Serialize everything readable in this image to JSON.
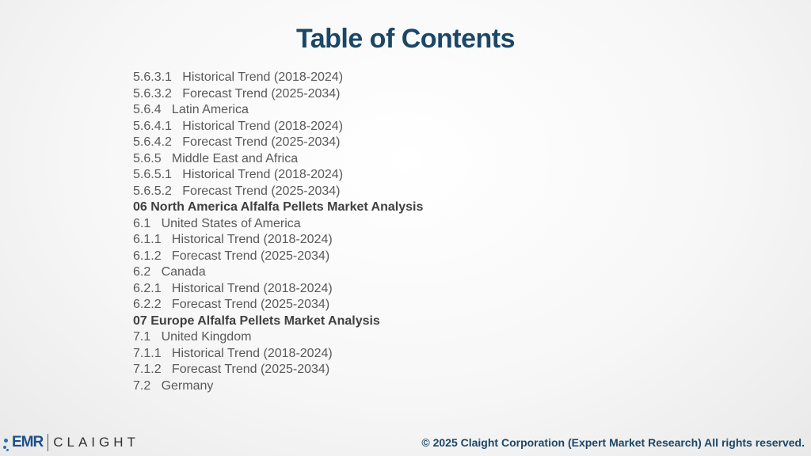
{
  "slide": {
    "title": "Table of Contents"
  },
  "toc": {
    "items": [
      {
        "text": "5.6.3.1   Historical Trend (2018-2024)",
        "heading": false
      },
      {
        "text": "5.6.3.2   Forecast Trend (2025-2034)",
        "heading": false
      },
      {
        "text": "5.6.4   Latin America",
        "heading": false
      },
      {
        "text": "5.6.4.1   Historical Trend (2018-2024)",
        "heading": false
      },
      {
        "text": "5.6.4.2   Forecast Trend (2025-2034)",
        "heading": false
      },
      {
        "text": "5.6.5   Middle East and Africa",
        "heading": false
      },
      {
        "text": "5.6.5.1   Historical Trend (2018-2024)",
        "heading": false
      },
      {
        "text": "5.6.5.2   Forecast Trend (2025-2034)",
        "heading": false
      },
      {
        "text": "06 North America Alfalfa Pellets Market Analysis",
        "heading": true
      },
      {
        "text": "6.1   United States of America",
        "heading": false
      },
      {
        "text": "6.1.1   Historical Trend (2018-2024)",
        "heading": false
      },
      {
        "text": "6.1.2   Forecast Trend (2025-2034)",
        "heading": false
      },
      {
        "text": "6.2   Canada",
        "heading": false
      },
      {
        "text": "6.2.1   Historical Trend (2018-2024)",
        "heading": false
      },
      {
        "text": "6.2.2   Forecast Trend (2025-2034)",
        "heading": false
      },
      {
        "text": "07 Europe Alfalfa Pellets Market Analysis",
        "heading": true
      },
      {
        "text": "7.1   United Kingdom",
        "heading": false
      },
      {
        "text": "7.1.1   Historical Trend (2018-2024)",
        "heading": false
      },
      {
        "text": "7.1.2   Forecast Trend (2025-2034)",
        "heading": false
      },
      {
        "text": "7.2   Germany",
        "heading": false
      }
    ]
  },
  "footer": {
    "logo_emr": "EMR",
    "logo_claight": "CLAIGHT",
    "copyright": "© 2025 Claight Corporation (Expert Market Research) All rights reserved."
  },
  "colors": {
    "title": "#1b4767",
    "body_text": "#595959",
    "heading_text": "#404040",
    "logo_blue": "#1d4f8a"
  }
}
